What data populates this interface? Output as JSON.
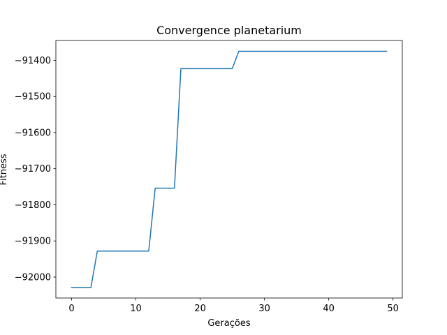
{
  "chart_data": {
    "type": "line",
    "title": "Convergence planetarium",
    "xlabel": "Gerações",
    "ylabel": "Fitness",
    "xlim": [
      -2.45,
      51.45
    ],
    "ylim": [
      -92058,
      -91345
    ],
    "xticks": [
      0,
      10,
      20,
      30,
      40,
      50
    ],
    "xtick_labels": [
      "0",
      "10",
      "20",
      "30",
      "40",
      "50"
    ],
    "yticks": [
      -91400,
      -91500,
      -91600,
      -91700,
      -91800,
      -91900,
      -92000
    ],
    "ytick_labels": [
      "−91400",
      "−91500",
      "−91600",
      "−91700",
      "−91800",
      "−91900",
      "−92000"
    ],
    "grid": false,
    "series": [
      {
        "color": "#1f77b4",
        "x": [
          0,
          1,
          2,
          3,
          4,
          5,
          6,
          7,
          8,
          9,
          10,
          11,
          12,
          13,
          14,
          15,
          16,
          17,
          18,
          19,
          20,
          21,
          22,
          23,
          24,
          25,
          26,
          27,
          28,
          29,
          30,
          31,
          32,
          33,
          34,
          35,
          36,
          37,
          38,
          39,
          40,
          41,
          42,
          43,
          44,
          45,
          46,
          47,
          48,
          49
        ],
        "y": [
          -92029,
          -92029,
          -92029,
          -92029,
          -91928,
          -91928,
          -91928,
          -91928,
          -91928,
          -91928,
          -91928,
          -91928,
          -91928,
          -91754,
          -91754,
          -91754,
          -91754,
          -91423,
          -91423,
          -91423,
          -91423,
          -91423,
          -91423,
          -91423,
          -91423,
          -91423,
          -91375,
          -91375,
          -91375,
          -91375,
          -91375,
          -91375,
          -91375,
          -91375,
          -91375,
          -91375,
          -91375,
          -91375,
          -91375,
          -91375,
          -91375,
          -91375,
          -91375,
          -91375,
          -91375,
          -91375,
          -91375,
          -91375,
          -91375,
          -91375
        ]
      }
    ]
  }
}
